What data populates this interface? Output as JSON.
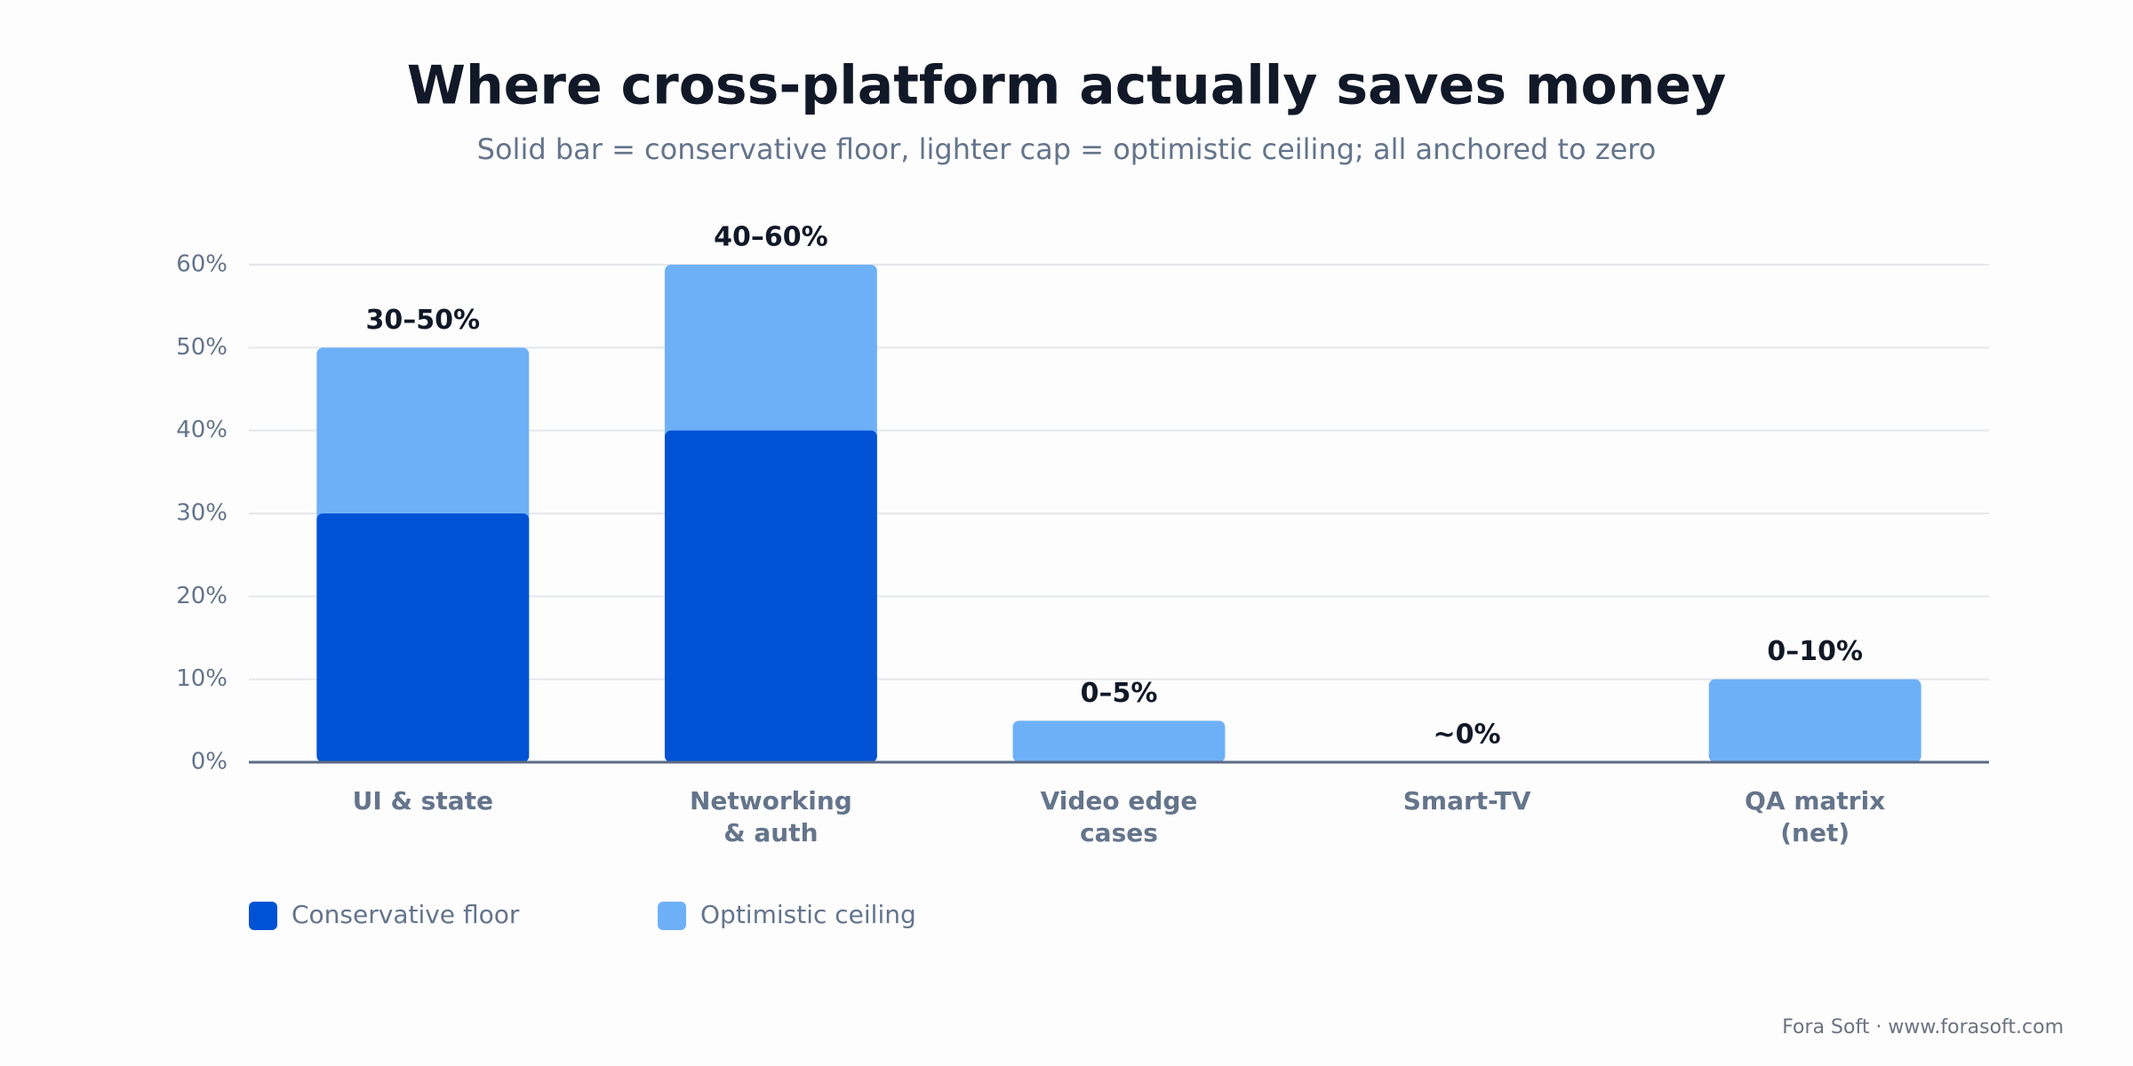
{
  "chart_data": {
    "type": "overlapping_bar",
    "title": "Where cross-platform actually saves money",
    "subtitle": "Solid bar = conservative floor, lighter cap = optimistic ceiling; all anchored to zero",
    "categories": [
      [
        "UI & state"
      ],
      [
        "Networking",
        "& auth"
      ],
      [
        "Video edge",
        "cases"
      ],
      [
        "Smart-TV"
      ],
      [
        "QA matrix",
        "(net)"
      ]
    ],
    "series": [
      {
        "name": "Optimistic ceiling",
        "color": "#6eb0f8",
        "values": [
          50,
          60,
          5,
          0,
          10
        ],
        "value_labels": [
          "30–50%",
          "40–60%",
          "0–5%",
          "~0%",
          "0–10%"
        ]
      },
      {
        "name": "Conservative floor",
        "color": "#0052d4",
        "values": [
          30,
          40,
          0,
          0,
          0
        ]
      }
    ],
    "legend_order": [
      1,
      0
    ],
    "ylim": [
      0,
      60
    ],
    "yticks": [
      {
        "value": 0,
        "label": "0%"
      },
      {
        "value": 10,
        "label": "10%"
      },
      {
        "value": 20,
        "label": "20%"
      },
      {
        "value": 30,
        "label": "30%"
      },
      {
        "value": 40,
        "label": "40%"
      },
      {
        "value": 50,
        "label": "50%"
      },
      {
        "value": 60,
        "label": "60%"
      }
    ],
    "grid": true,
    "legend_position": "bottom-left",
    "footer": "Fora Soft · www.forasoft.com"
  }
}
